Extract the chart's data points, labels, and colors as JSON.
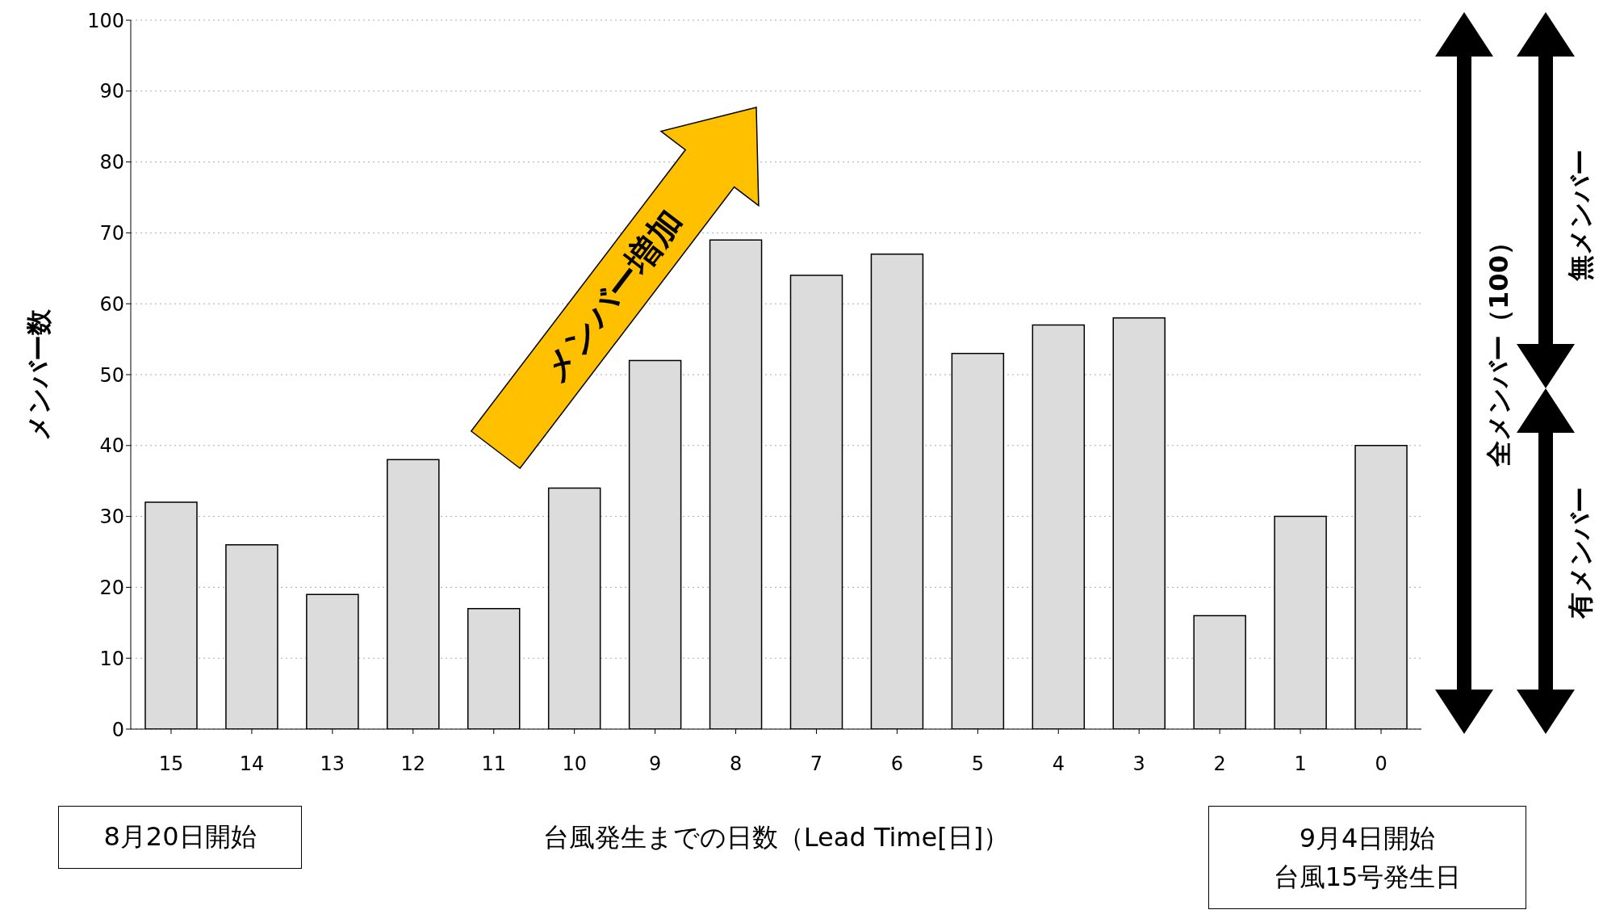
{
  "chart_data": {
    "type": "bar",
    "xlabel": "台風発生までの日数（Lead Time[日]）",
    "ylabel": "メンバー数",
    "categories": [
      "15",
      "14",
      "13",
      "12",
      "11",
      "10",
      "9",
      "8",
      "7",
      "6",
      "5",
      "4",
      "3",
      "2",
      "1",
      "0"
    ],
    "values": [
      32,
      26,
      19,
      38,
      17,
      34,
      52,
      69,
      64,
      67,
      53,
      57,
      58,
      16,
      30,
      40
    ],
    "color": "#dcdcdc",
    "ylim": [
      0,
      100
    ],
    "yticks": [
      0,
      10,
      20,
      30,
      40,
      50,
      60,
      70,
      80,
      90,
      100
    ],
    "grid": "y",
    "annotations": [
      "メンバー増加",
      "全メンバー（100）",
      "無メンバー",
      "有メンバー",
      "8月20日開始",
      "9月4日開始",
      "台風15号発生日"
    ]
  }
}
